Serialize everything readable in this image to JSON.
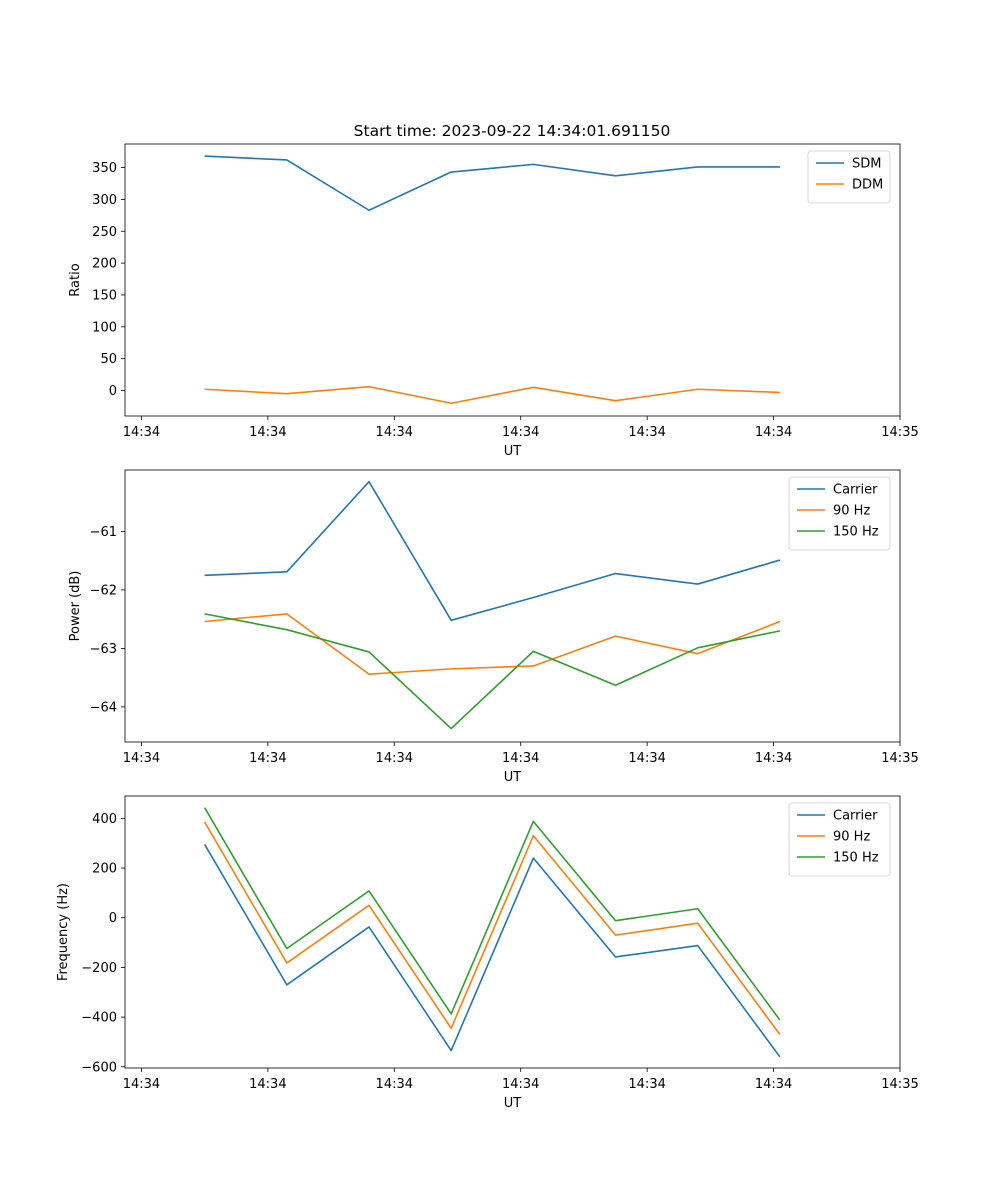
{
  "title": "Start time: 2023-09-22 14:34:01.691150",
  "colors": {
    "blue": "#1f77b4",
    "orange": "#ff7f0e",
    "green": "#2ca02c"
  },
  "chart_data": [
    {
      "type": "line",
      "title": "Start time: 2023-09-22 14:34:01.691150",
      "xlabel": "UT",
      "ylabel": "Ratio",
      "x_tick_labels": [
        "14:34",
        "14:34",
        "14:34",
        "14:34",
        "14:34",
        "14:34",
        "14:35"
      ],
      "x_points": [
        0.5,
        1.15,
        1.8,
        2.45,
        3.1,
        3.75,
        4.4,
        5.05
      ],
      "xlim": [
        -0.13,
        6.0
      ],
      "x_ticks": [
        0,
        1,
        2,
        3,
        4,
        5,
        6
      ],
      "y_ticks": [
        0,
        50,
        100,
        150,
        200,
        250,
        300,
        350
      ],
      "y_tick_labels": [
        "0",
        "50",
        "100",
        "150",
        "200",
        "250",
        "300",
        "350"
      ],
      "ylim": [
        -40,
        387
      ],
      "legend": "top-right",
      "series": [
        {
          "name": "SDM",
          "color": "#1f77b4",
          "values": [
            368,
            362,
            283,
            343,
            355,
            337,
            351,
            351
          ]
        },
        {
          "name": "DDM",
          "color": "#ff7f0e",
          "values": [
            2,
            -5,
            6,
            -20,
            5,
            -16,
            2,
            -3
          ]
        }
      ]
    },
    {
      "type": "line",
      "xlabel": "UT",
      "ylabel": "Power (dB)",
      "x_tick_labels": [
        "14:34",
        "14:34",
        "14:34",
        "14:34",
        "14:34",
        "14:34",
        "14:35"
      ],
      "x_points": [
        0.5,
        1.15,
        1.8,
        2.45,
        3.1,
        3.75,
        4.4,
        5.05
      ],
      "xlim": [
        -0.13,
        6.0
      ],
      "x_ticks": [
        0,
        1,
        2,
        3,
        4,
        5,
        6
      ],
      "y_ticks": [
        -64,
        -63,
        -62,
        -61
      ],
      "y_tick_labels": [
        "−64",
        "−63",
        "−62",
        "−61"
      ],
      "ylim": [
        -64.6,
        -59.95
      ],
      "legend": "top-right",
      "series": [
        {
          "name": "Carrier",
          "color": "#1f77b4",
          "values": [
            -61.75,
            -61.69,
            -60.15,
            -62.52,
            -62.13,
            -61.72,
            -61.9,
            -61.49
          ]
        },
        {
          "name": "90 Hz",
          "color": "#ff7f0e",
          "values": [
            -62.54,
            -62.41,
            -63.44,
            -63.35,
            -63.3,
            -62.79,
            -63.09,
            -62.54
          ]
        },
        {
          "name": "150 Hz",
          "color": "#2ca02c",
          "values": [
            -62.41,
            -62.68,
            -63.06,
            -64.37,
            -63.05,
            -63.63,
            -62.99,
            -62.7
          ]
        }
      ]
    },
    {
      "type": "line",
      "xlabel": "UT",
      "ylabel": "Frequency (Hz)",
      "x_tick_labels": [
        "14:34",
        "14:34",
        "14:34",
        "14:34",
        "14:34",
        "14:34",
        "14:35"
      ],
      "x_points": [
        0.5,
        1.15,
        1.8,
        2.45,
        3.1,
        3.75,
        4.4,
        5.05
      ],
      "xlim": [
        -0.13,
        6.0
      ],
      "x_ticks": [
        0,
        1,
        2,
        3,
        4,
        5,
        6
      ],
      "y_ticks": [
        -600,
        -400,
        -200,
        0,
        200,
        400
      ],
      "y_tick_labels": [
        "−600",
        "−400",
        "−200",
        "0",
        "200",
        "400"
      ],
      "ylim": [
        -605,
        490
      ],
      "legend": "top-right",
      "series": [
        {
          "name": "Carrier",
          "color": "#1f77b4",
          "values": [
            295,
            -270,
            -37,
            -535,
            240,
            -158,
            -112,
            -560
          ]
        },
        {
          "name": "90 Hz",
          "color": "#ff7f0e",
          "values": [
            385,
            -182,
            50,
            -445,
            330,
            -70,
            -22,
            -470
          ]
        },
        {
          "name": "150 Hz",
          "color": "#2ca02c",
          "values": [
            443,
            -124,
            108,
            -387,
            388,
            -12,
            36,
            -412
          ]
        }
      ]
    }
  ]
}
